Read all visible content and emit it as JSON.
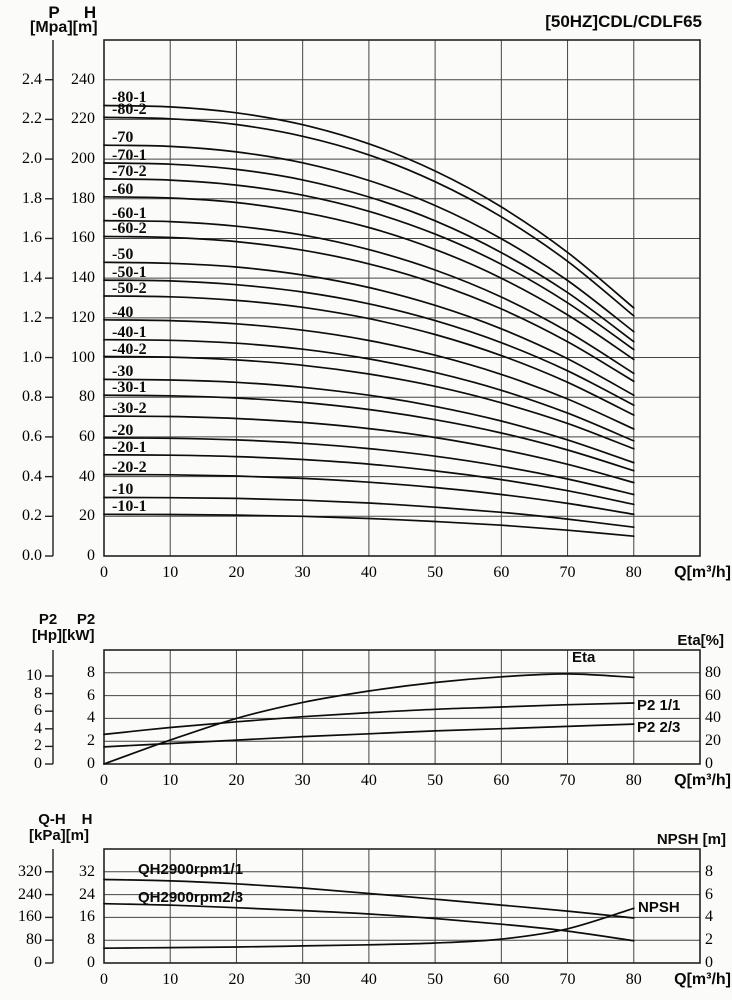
{
  "title": "[50HZ]CDL/CDLF65",
  "colors": {
    "curve": "#0d0d0d",
    "grid": "#454545",
    "border": "#222222",
    "axis": "#222222",
    "text": "#000000",
    "background": "#fbfbfa"
  },
  "chart_data": [
    {
      "type": "line",
      "name": "head-capacity-curves",
      "x": [
        0,
        10,
        20,
        30,
        40,
        50,
        60,
        70,
        80
      ],
      "x_axis": {
        "unit": "Q[m³/h]",
        "ticks": [
          0,
          10,
          20,
          30,
          40,
          50,
          60,
          70,
          80
        ],
        "range": [
          0,
          90
        ],
        "grid_step": 10
      },
      "left1": {
        "header": "P",
        "unit": "[Mpa]",
        "ticks": [
          "2.4",
          "2.2",
          "2.0",
          "1.8",
          "1.6",
          "1.4",
          "1.2",
          "1.0",
          "0.8",
          "0.6",
          "0.4",
          "0.2",
          "0.0"
        ],
        "range": [
          0,
          2.6
        ]
      },
      "left2": {
        "header": "H",
        "unit": "[m]",
        "ticks": [
          240,
          220,
          200,
          180,
          160,
          140,
          120,
          100,
          80,
          60,
          40,
          20,
          0
        ],
        "range": [
          0,
          260
        ],
        "grid_step": 20
      },
      "grid": true,
      "series": [
        {
          "name": "-80-1",
          "scale": "left2",
          "values": [
            227,
            226.3,
            223.3,
            217.3,
            207.7,
            194,
            175.9,
            153,
            125
          ]
        },
        {
          "name": "-80-2",
          "scale": "left2",
          "values": [
            221,
            220.3,
            217.4,
            211.5,
            202.1,
            188.6,
            170.9,
            148.5,
            121
          ]
        },
        {
          "name": "-70",
          "scale": "left2",
          "values": [
            207,
            206.4,
            203.6,
            198.1,
            189.2,
            176.6,
            159.9,
            138.8,
            113
          ]
        },
        {
          "name": "-70-1",
          "scale": "left2",
          "values": [
            198,
            197.4,
            194.8,
            189.5,
            180.9,
            168.9,
            152.9,
            132.7,
            108
          ]
        },
        {
          "name": "-70-2",
          "scale": "left2",
          "values": [
            190,
            189.4,
            186.9,
            181.8,
            173.7,
            162.2,
            147,
            127.6,
            104
          ]
        },
        {
          "name": "-60",
          "scale": "left2",
          "values": [
            181,
            180.4,
            178.1,
            173.2,
            165.5,
            154.5,
            140,
            121.5,
            99
          ]
        },
        {
          "name": "-60-1",
          "scale": "left2",
          "values": [
            169,
            168.5,
            166.2,
            161.7,
            154.4,
            144.1,
            130.5,
            113.1,
            92
          ]
        },
        {
          "name": "-60-2",
          "scale": "left2",
          "values": [
            161,
            160.5,
            158.4,
            154.1,
            147.2,
            137.4,
            124.5,
            108,
            88
          ]
        },
        {
          "name": "-50",
          "scale": "left2",
          "values": [
            148,
            147.5,
            145.6,
            141.6,
            135.3,
            126.3,
            114.5,
            99.4,
            81
          ]
        },
        {
          "name": "-50-1",
          "scale": "left2",
          "values": [
            139,
            138.6,
            136.7,
            133,
            127.1,
            118.6,
            107.5,
            93.3,
            76
          ]
        },
        {
          "name": "-50-2",
          "scale": "left2",
          "values": [
            131,
            130.6,
            128.8,
            125.3,
            119.6,
            111.6,
            101,
            87.5,
            71
          ]
        },
        {
          "name": "-40",
          "scale": "left2",
          "values": [
            119,
            118.6,
            117,
            113.8,
            108.6,
            101.2,
            91.5,
            79.1,
            64
          ]
        },
        {
          "name": "-40-1",
          "scale": "left2",
          "values": [
            109,
            108.7,
            107.2,
            104.2,
            99.3,
            92.5,
            83.5,
            72,
            58
          ]
        },
        {
          "name": "-40-2",
          "scale": "left2",
          "values": [
            100.5,
            100.2,
            98.8,
            96.1,
            91.7,
            85.5,
            77.2,
            66.8,
            54
          ]
        },
        {
          "name": "-30",
          "scale": "left2",
          "values": [
            89,
            88.7,
            87.5,
            85,
            81,
            75.4,
            68,
            58.5,
            47
          ]
        },
        {
          "name": "-30-1",
          "scale": "left2",
          "values": [
            81,
            80.7,
            79.6,
            77.4,
            73.8,
            68.7,
            62,
            53.4,
            43
          ]
        },
        {
          "name": "-30-2",
          "scale": "left2",
          "values": [
            70.5,
            70.3,
            69.3,
            67.3,
            64.2,
            59.7,
            53.7,
            46.2,
            37
          ]
        },
        {
          "name": "-20",
          "scale": "left2",
          "values": [
            59.5,
            59.3,
            58.5,
            56.8,
            54.1,
            50.3,
            45.2,
            38.8,
            31
          ]
        },
        {
          "name": "-20-1",
          "scale": "left2",
          "values": [
            51,
            50.8,
            50.1,
            48.6,
            46.3,
            42.9,
            38.5,
            32.9,
            26
          ]
        },
        {
          "name": "-20-2",
          "scale": "left2",
          "values": [
            41,
            40.9,
            40.3,
            39.1,
            37.2,
            34.5,
            31,
            26.5,
            21
          ]
        },
        {
          "name": "-10",
          "scale": "left2",
          "values": [
            29.5,
            29.4,
            29,
            28.1,
            26.7,
            24.6,
            22,
            18.6,
            14.5
          ]
        },
        {
          "name": "-10-1",
          "scale": "left2",
          "values": [
            21,
            20.9,
            20.6,
            20,
            18.9,
            17.4,
            15.5,
            13,
            10
          ]
        }
      ]
    },
    {
      "type": "line",
      "name": "power-efficiency-curves",
      "x": [
        0,
        10,
        20,
        30,
        40,
        50,
        60,
        70,
        80
      ],
      "x_axis": {
        "unit": "Q[m³/h]",
        "ticks": [
          0,
          10,
          20,
          30,
          40,
          50,
          60,
          70,
          80
        ],
        "range": [
          0,
          90
        ],
        "grid_step": 10
      },
      "left1": {
        "header": "P2",
        "unit": "[Hp]",
        "ticks": [
          10,
          8,
          6,
          4,
          2,
          0
        ],
        "range": [
          0,
          13
        ]
      },
      "left2": {
        "header": "P2",
        "unit": "[kW]",
        "ticks": [
          8,
          6,
          4,
          2,
          0
        ],
        "range": [
          0,
          10
        ],
        "grid_step": 2
      },
      "right": {
        "header": "Eta[%]",
        "ticks": [
          80,
          60,
          40,
          20,
          0
        ],
        "range": [
          0,
          100
        ]
      },
      "grid": true,
      "series": [
        {
          "name": "Eta",
          "scale": "right",
          "values": [
            0,
            21,
            40,
            54,
            64,
            71.5,
            76.5,
            79,
            76
          ]
        },
        {
          "name": "P2 1/1",
          "scale": "left2",
          "values": [
            2.6,
            3.2,
            3.7,
            4.15,
            4.5,
            4.8,
            5,
            5.2,
            5.35
          ]
        },
        {
          "name": "P2 2/3",
          "scale": "left2",
          "values": [
            1.5,
            1.8,
            2.1,
            2.4,
            2.65,
            2.9,
            3.1,
            3.3,
            3.5
          ]
        }
      ]
    },
    {
      "type": "line",
      "name": "qh-npsh-curves",
      "x": [
        0,
        10,
        20,
        30,
        40,
        50,
        60,
        70,
        80
      ],
      "x_axis": {
        "unit": "Q[m³/h]",
        "ticks": [
          0,
          10,
          20,
          30,
          40,
          50,
          60,
          70,
          80
        ],
        "range": [
          0,
          90
        ],
        "grid_step": 10
      },
      "left1": {
        "header": "Q-H",
        "unit": "[kPa]",
        "ticks": [
          320,
          240,
          160,
          80,
          0
        ],
        "range": [
          0,
          400
        ]
      },
      "left2": {
        "header": "H",
        "unit": "[m]",
        "ticks": [
          32,
          24,
          16,
          8,
          0
        ],
        "range": [
          0,
          40
        ],
        "grid_step": 8
      },
      "right": {
        "header": "NPSH [m]",
        "ticks": [
          8,
          6,
          4,
          2,
          0
        ],
        "range": [
          0,
          10
        ]
      },
      "grid": true,
      "series": [
        {
          "name": "QH2900rpm1/1",
          "scale": "left2",
          "values": [
            29.3,
            28.8,
            27.8,
            26.3,
            24.4,
            22.4,
            20.3,
            18.2,
            15.8
          ]
        },
        {
          "name": "QH2900rpm2/3",
          "scale": "left2",
          "values": [
            20.8,
            20.3,
            19.4,
            18.4,
            17.2,
            15.6,
            13.6,
            11.2,
            7.8
          ]
        },
        {
          "name": "NPSH",
          "scale": "right",
          "values": [
            1.3,
            1.35,
            1.4,
            1.5,
            1.6,
            1.75,
            2.1,
            3,
            4.8
          ]
        }
      ]
    }
  ]
}
